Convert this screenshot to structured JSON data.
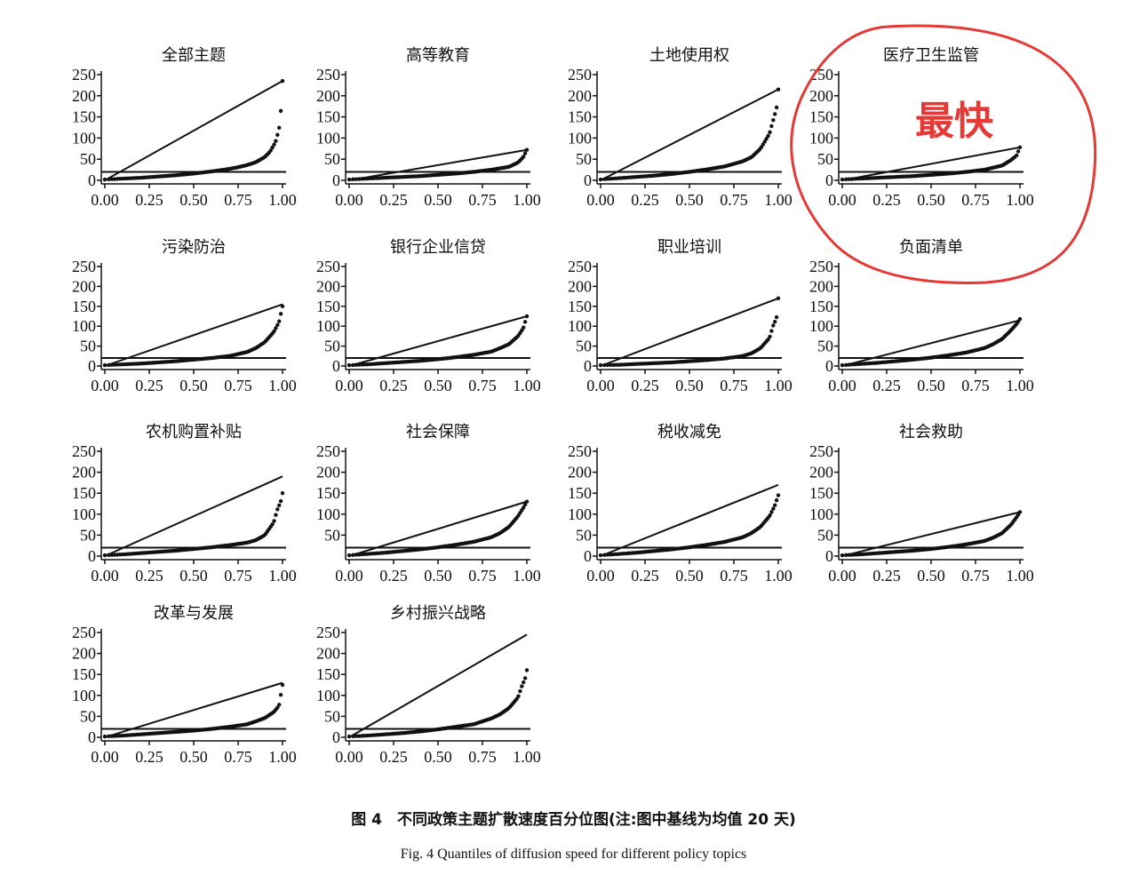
{
  "colors": {
    "ink": "#111111",
    "highlight": "#e53935",
    "background": "#ffffff"
  },
  "figure": {
    "caption_cn": "图 4　不同政策主题扩散速度百分位图(注:图中基线为均值 20 天)",
    "caption_en": "Fig. 4 Quantiles of diffusion speed for different policy topics",
    "highlight_label": "最快",
    "highlighted_panel": "医疗卫生监管"
  },
  "chart_data": [
    {
      "type": "scatter",
      "title": "全部主题",
      "x_ticks": [
        "0.00",
        "0.25",
        "0.50",
        "0.75",
        "1.00"
      ],
      "y_ticks": [
        "250",
        "200",
        "150",
        "100",
        "50",
        "0"
      ],
      "xlim": [
        0,
        1
      ],
      "ylim": [
        0,
        250
      ],
      "baseline": 20,
      "reference_line": {
        "x": [
          0,
          1
        ],
        "y": [
          0,
          235
        ]
      },
      "series": [
        {
          "x": [
            0,
            0.1,
            0.2,
            0.3,
            0.4,
            0.5,
            0.6,
            0.7,
            0.75,
            0.8,
            0.85,
            0.9,
            0.93,
            0.96,
            0.98,
            0.99,
            1.0
          ],
          "y": [
            2,
            4,
            6,
            9,
            12,
            16,
            21,
            27,
            31,
            36,
            43,
            55,
            68,
            90,
            120,
            160,
            235
          ]
        }
      ]
    },
    {
      "type": "scatter",
      "title": "高等教育",
      "x_ticks": [
        "0.00",
        "0.25",
        "0.50",
        "0.75",
        "1.00"
      ],
      "y_ticks": [
        "250",
        "200",
        "150",
        "100",
        "50",
        "0"
      ],
      "xlim": [
        0,
        1
      ],
      "ylim": [
        0,
        250
      ],
      "baseline": 20,
      "reference_line": {
        "x": [
          0,
          1
        ],
        "y": [
          0,
          72
        ]
      },
      "series": [
        {
          "x": [
            0,
            0.1,
            0.2,
            0.3,
            0.4,
            0.5,
            0.6,
            0.7,
            0.8,
            0.9,
            0.95,
            0.98,
            1.0
          ],
          "y": [
            2,
            4,
            6,
            8,
            10,
            13,
            16,
            20,
            25,
            32,
            42,
            55,
            72
          ]
        }
      ]
    },
    {
      "type": "scatter",
      "title": "土地使用权",
      "x_ticks": [
        "0.00",
        "0.25",
        "0.50",
        "0.75",
        "1.00"
      ],
      "y_ticks": [
        "250",
        "200",
        "150",
        "100",
        "50",
        "0"
      ],
      "xlim": [
        0,
        1
      ],
      "ylim": [
        0,
        250
      ],
      "baseline": 20,
      "reference_line": {
        "x": [
          0,
          1
        ],
        "y": [
          0,
          215
        ]
      },
      "series": [
        {
          "x": [
            0,
            0.1,
            0.2,
            0.3,
            0.4,
            0.5,
            0.6,
            0.7,
            0.8,
            0.85,
            0.9,
            0.95,
            0.97,
            0.99,
            1.0
          ],
          "y": [
            2,
            5,
            8,
            11,
            15,
            20,
            26,
            33,
            45,
            55,
            75,
            110,
            140,
            170,
            215
          ]
        }
      ]
    },
    {
      "type": "scatter",
      "title": "医疗卫生监管",
      "x_ticks": [
        "0.00",
        "0.25",
        "0.50",
        "0.75",
        "1.00"
      ],
      "y_ticks": [
        "250",
        "200",
        "150",
        "100",
        "50",
        "0"
      ],
      "xlim": [
        0,
        1
      ],
      "ylim": [
        0,
        250
      ],
      "baseline": 20,
      "reference_line": {
        "x": [
          0,
          1
        ],
        "y": [
          0,
          78
        ]
      },
      "series": [
        {
          "x": [
            0,
            0.1,
            0.2,
            0.3,
            0.4,
            0.5,
            0.6,
            0.7,
            0.8,
            0.9,
            0.95,
            0.98,
            1.0
          ],
          "y": [
            2,
            4,
            6,
            8,
            10,
            13,
            16,
            20,
            25,
            35,
            48,
            58,
            78
          ]
        }
      ]
    },
    {
      "type": "scatter",
      "title": "污染防治",
      "x_ticks": [
        "0.00",
        "0.25",
        "0.50",
        "0.75",
        "1.00"
      ],
      "y_ticks": [
        "250",
        "200",
        "150",
        "100",
        "50",
        "0"
      ],
      "xlim": [
        0,
        1
      ],
      "ylim": [
        0,
        250
      ],
      "baseline": 20,
      "reference_line": {
        "x": [
          0,
          1
        ],
        "y": [
          0,
          155
        ]
      },
      "series": [
        {
          "x": [
            0,
            0.1,
            0.2,
            0.3,
            0.4,
            0.5,
            0.6,
            0.7,
            0.8,
            0.85,
            0.9,
            0.95,
            0.98,
            1.0
          ],
          "y": [
            2,
            4,
            6,
            9,
            12,
            16,
            20,
            25,
            35,
            45,
            60,
            85,
            110,
            150
          ]
        }
      ]
    },
    {
      "type": "scatter",
      "title": "银行企业信贷",
      "x_ticks": [
        "0.00",
        "0.25",
        "0.50",
        "0.75",
        "1.00"
      ],
      "y_ticks": [
        "250",
        "200",
        "150",
        "100",
        "50",
        "0"
      ],
      "xlim": [
        0,
        1
      ],
      "ylim": [
        0,
        250
      ],
      "baseline": 20,
      "reference_line": {
        "x": [
          0,
          1
        ],
        "y": [
          0,
          125
        ]
      },
      "series": [
        {
          "x": [
            0,
            0.1,
            0.2,
            0.3,
            0.4,
            0.5,
            0.6,
            0.7,
            0.8,
            0.85,
            0.9,
            0.95,
            0.98,
            1.0
          ],
          "y": [
            2,
            4,
            7,
            10,
            13,
            17,
            22,
            28,
            36,
            45,
            55,
            75,
            95,
            125
          ]
        }
      ]
    },
    {
      "type": "scatter",
      "title": "职业培训",
      "x_ticks": [
        "0.00",
        "0.25",
        "0.50",
        "0.75",
        "1.00"
      ],
      "y_ticks": [
        "250",
        "200",
        "150",
        "100",
        "50",
        "0"
      ],
      "xlim": [
        0,
        1
      ],
      "ylim": [
        0,
        250
      ],
      "baseline": 20,
      "reference_line": {
        "x": [
          0,
          1
        ],
        "y": [
          0,
          170
        ]
      },
      "series": [
        {
          "x": [
            0,
            0.1,
            0.2,
            0.3,
            0.4,
            0.5,
            0.6,
            0.7,
            0.8,
            0.85,
            0.9,
            0.95,
            0.97,
            0.99,
            1.0
          ],
          "y": [
            2,
            3,
            5,
            7,
            9,
            12,
            15,
            19,
            25,
            32,
            45,
            70,
            100,
            120,
            170
          ]
        }
      ]
    },
    {
      "type": "scatter",
      "title": "负面清单",
      "x_ticks": [
        "0.00",
        "0.25",
        "0.50",
        "0.75",
        "1.00"
      ],
      "y_ticks": [
        "250",
        "200",
        "150",
        "100",
        "50",
        "0"
      ],
      "xlim": [
        0,
        1
      ],
      "ylim": [
        0,
        250
      ],
      "baseline": 20,
      "reference_line": {
        "x": [
          0,
          1
        ],
        "y": [
          0,
          115
        ]
      },
      "series": [
        {
          "x": [
            0,
            0.1,
            0.2,
            0.3,
            0.4,
            0.5,
            0.6,
            0.7,
            0.8,
            0.85,
            0.9,
            0.95,
            0.98,
            1.0
          ],
          "y": [
            2,
            5,
            8,
            12,
            16,
            21,
            27,
            34,
            45,
            55,
            68,
            90,
            105,
            118
          ]
        }
      ]
    },
    {
      "type": "scatter",
      "title": "农机购置补贴",
      "x_ticks": [
        "0.00",
        "0.25",
        "0.50",
        "0.75",
        "1.00"
      ],
      "y_ticks": [
        "250",
        "200",
        "150",
        "100",
        "50",
        "0"
      ],
      "xlim": [
        0,
        1
      ],
      "ylim": [
        0,
        250
      ],
      "baseline": 20,
      "reference_line": {
        "x": [
          0,
          1
        ],
        "y": [
          0,
          190
        ]
      },
      "series": [
        {
          "x": [
            0,
            0.1,
            0.2,
            0.3,
            0.4,
            0.5,
            0.6,
            0.7,
            0.8,
            0.85,
            0.9,
            0.95,
            0.97,
            0.99,
            1.0
          ],
          "y": [
            2,
            4,
            7,
            10,
            13,
            17,
            21,
            26,
            32,
            38,
            50,
            80,
            110,
            130,
            150
          ]
        }
      ]
    },
    {
      "type": "scatter",
      "title": "社会保障",
      "x_ticks": [
        "0.00",
        "0.25",
        "0.50",
        "0.75",
        "1.00"
      ],
      "y_ticks": [
        "250",
        "200",
        "150",
        "100",
        "50"
      ],
      "xlim": [
        0,
        1
      ],
      "ylim": [
        0,
        250
      ],
      "baseline": 20,
      "reference_line": {
        "x": [
          0,
          1
        ],
        "y": [
          0,
          130
        ]
      },
      "series": [
        {
          "x": [
            0,
            0.1,
            0.2,
            0.3,
            0.4,
            0.5,
            0.6,
            0.7,
            0.8,
            0.85,
            0.9,
            0.95,
            0.98,
            1.0
          ],
          "y": [
            2,
            5,
            8,
            12,
            16,
            21,
            27,
            34,
            45,
            55,
            70,
            95,
            115,
            130
          ]
        }
      ]
    },
    {
      "type": "scatter",
      "title": "税收减免",
      "x_ticks": [
        "0.00",
        "0.25",
        "0.50",
        "0.75",
        "1.00"
      ],
      "y_ticks": [
        "250",
        "200",
        "150",
        "100",
        "50",
        "0"
      ],
      "xlim": [
        0,
        1
      ],
      "ylim": [
        0,
        250
      ],
      "baseline": 20,
      "reference_line": {
        "x": [
          0,
          1
        ],
        "y": [
          0,
          170
        ]
      },
      "series": [
        {
          "x": [
            0,
            0.1,
            0.2,
            0.3,
            0.4,
            0.5,
            0.6,
            0.7,
            0.8,
            0.85,
            0.9,
            0.95,
            0.98,
            1.0
          ],
          "y": [
            2,
            5,
            8,
            12,
            16,
            21,
            27,
            34,
            45,
            55,
            70,
            95,
            120,
            145
          ]
        }
      ]
    },
    {
      "type": "scatter",
      "title": "社会救助",
      "x_ticks": [
        "0.00",
        "0.25",
        "0.50",
        "0.75",
        "1.00"
      ],
      "y_ticks": [
        "250",
        "200",
        "150",
        "100",
        "50",
        "0"
      ],
      "xlim": [
        0,
        1
      ],
      "ylim": [
        0,
        250
      ],
      "baseline": 20,
      "reference_line": {
        "x": [
          0,
          1
        ],
        "y": [
          0,
          105
        ]
      },
      "series": [
        {
          "x": [
            0,
            0.1,
            0.2,
            0.3,
            0.4,
            0.5,
            0.6,
            0.7,
            0.8,
            0.85,
            0.9,
            0.95,
            0.98,
            1.0
          ],
          "y": [
            2,
            4,
            7,
            10,
            13,
            17,
            22,
            28,
            36,
            44,
            55,
            75,
            92,
            105
          ]
        }
      ]
    },
    {
      "type": "scatter",
      "title": "改革与发展",
      "x_ticks": [
        "0.00",
        "0.25",
        "0.50",
        "0.75",
        "1.00"
      ],
      "y_ticks": [
        "250",
        "200",
        "150",
        "100",
        "50",
        "0"
      ],
      "xlim": [
        0,
        1
      ],
      "ylim": [
        0,
        250
      ],
      "baseline": 20,
      "reference_line": {
        "x": [
          0,
          1
        ],
        "y": [
          0,
          130
        ]
      },
      "series": [
        {
          "x": [
            0,
            0.1,
            0.2,
            0.3,
            0.4,
            0.5,
            0.6,
            0.7,
            0.8,
            0.85,
            0.9,
            0.95,
            0.98,
            1.0
          ],
          "y": [
            2,
            4,
            7,
            10,
            13,
            16,
            20,
            25,
            31,
            38,
            46,
            60,
            75,
            125
          ]
        }
      ]
    },
    {
      "type": "scatter",
      "title": "乡村振兴战略",
      "x_ticks": [
        "0.00",
        "0.25",
        "0.50",
        "0.75",
        "1.00"
      ],
      "y_ticks": [
        "250",
        "200",
        "150",
        "100",
        "50",
        "0"
      ],
      "xlim": [
        0,
        1
      ],
      "ylim": [
        0,
        250
      ],
      "baseline": 20,
      "reference_line": {
        "x": [
          0,
          1
        ],
        "y": [
          0,
          245
        ]
      },
      "series": [
        {
          "x": [
            0,
            0.1,
            0.2,
            0.3,
            0.4,
            0.5,
            0.6,
            0.7,
            0.8,
            0.85,
            0.9,
            0.95,
            0.97,
            0.99,
            1.0
          ],
          "y": [
            2,
            4,
            7,
            10,
            14,
            19,
            25,
            31,
            45,
            55,
            70,
            95,
            120,
            140,
            160
          ]
        }
      ]
    }
  ]
}
